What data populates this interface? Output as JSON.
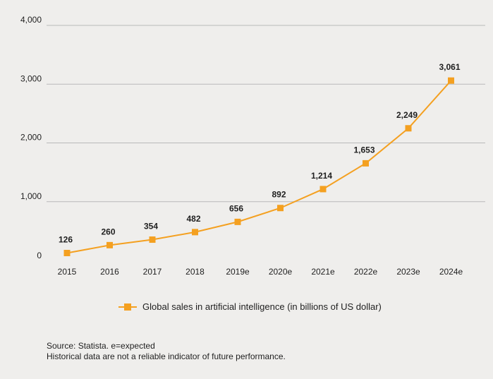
{
  "chart_data": {
    "type": "line",
    "title": "",
    "xlabel": "",
    "ylabel": "",
    "categories": [
      "2015",
      "2016",
      "2017",
      "2018",
      "2019e",
      "2020e",
      "2021e",
      "2022e",
      "2023e",
      "2024e"
    ],
    "series": [
      {
        "name": "Global sales in artificial intelligence (in billions of US dollar)",
        "values": [
          126,
          260,
          354,
          482,
          656,
          892,
          1214,
          1653,
          2249,
          3061
        ],
        "value_labels": [
          "126",
          "260",
          "354",
          "482",
          "656",
          "892",
          "1,214",
          "1,653",
          "2,249",
          "3,061"
        ],
        "color": "#f4a020",
        "marker": "square"
      }
    ],
    "ylim": [
      0,
      4000
    ],
    "yticks": [
      0,
      1000,
      2000,
      3000,
      4000
    ],
    "ytick_labels": [
      "0",
      "1,000",
      "2,000",
      "3,000",
      "4,000"
    ],
    "grid": true,
    "legend": "bottom-center"
  },
  "footer": {
    "source": "Source: Statista. e=expected",
    "disclaimer": "Historical data are not a reliable indicator of future performance."
  },
  "colors": {
    "background": "#efeeec",
    "gridline": "#b9b9b9",
    "series": "#f4a020"
  }
}
